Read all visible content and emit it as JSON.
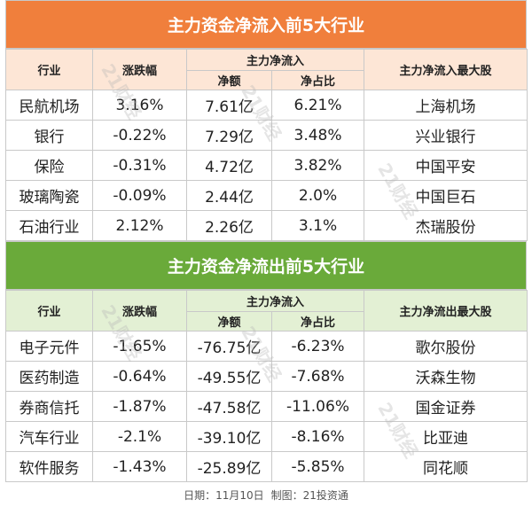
{
  "inflow": {
    "title": "主力资金净流入前5大行业",
    "headers": {
      "industry": "行业",
      "change": "涨跌幅",
      "netflow_group": "主力净流入",
      "amount": "净额",
      "ratio": "净占比",
      "top_stock": "主力净流入最大股"
    },
    "rows": [
      {
        "industry": "民航机场",
        "change": "3.16%",
        "amount": "7.61亿",
        "ratio": "6.21%",
        "stock": "上海机场"
      },
      {
        "industry": "银行",
        "change": "-0.22%",
        "amount": "7.29亿",
        "ratio": "3.48%",
        "stock": "兴业银行"
      },
      {
        "industry": "保险",
        "change": "-0.31%",
        "amount": "4.72亿",
        "ratio": "3.82%",
        "stock": "中国平安"
      },
      {
        "industry": "玻璃陶瓷",
        "change": "-0.09%",
        "amount": "2.44亿",
        "ratio": "2.0%",
        "stock": "中国巨石"
      },
      {
        "industry": "石油行业",
        "change": "2.12%",
        "amount": "2.26亿",
        "ratio": "3.1%",
        "stock": "杰瑞股份"
      }
    ]
  },
  "outflow": {
    "title": "主力资金净流出前5大行业",
    "headers": {
      "industry": "行业",
      "change": "涨跌幅",
      "netflow_group": "主力净流入",
      "amount": "净额",
      "ratio": "净占比",
      "top_stock": "主力净流出最大股"
    },
    "rows": [
      {
        "industry": "电子元件",
        "change": "-1.65%",
        "amount": "-76.75亿",
        "ratio": "-6.23%",
        "stock": "歌尔股份"
      },
      {
        "industry": "医药制造",
        "change": "-0.64%",
        "amount": "-49.55亿",
        "ratio": "-7.68%",
        "stock": "沃森生物"
      },
      {
        "industry": "券商信托",
        "change": "-1.87%",
        "amount": "-47.58亿",
        "ratio": "-11.06%",
        "stock": "国金证券"
      },
      {
        "industry": "汽车行业",
        "change": "-2.1%",
        "amount": "-39.10亿",
        "ratio": "-8.16%",
        "stock": "比亚迪"
      },
      {
        "industry": "软件服务",
        "change": "-1.43%",
        "amount": "-25.89亿",
        "ratio": "-5.85%",
        "stock": "同花顺"
      }
    ]
  },
  "footer": {
    "date_label": "日期：11月10日",
    "credit_label": "制图：21投资通"
  },
  "watermark": {
    "text": "21财经"
  },
  "colors": {
    "inflow_banner": "#f07f3c",
    "inflow_header": "#fde6d6",
    "outflow_banner": "#6aaa3a",
    "outflow_header": "#e3f0d4"
  }
}
